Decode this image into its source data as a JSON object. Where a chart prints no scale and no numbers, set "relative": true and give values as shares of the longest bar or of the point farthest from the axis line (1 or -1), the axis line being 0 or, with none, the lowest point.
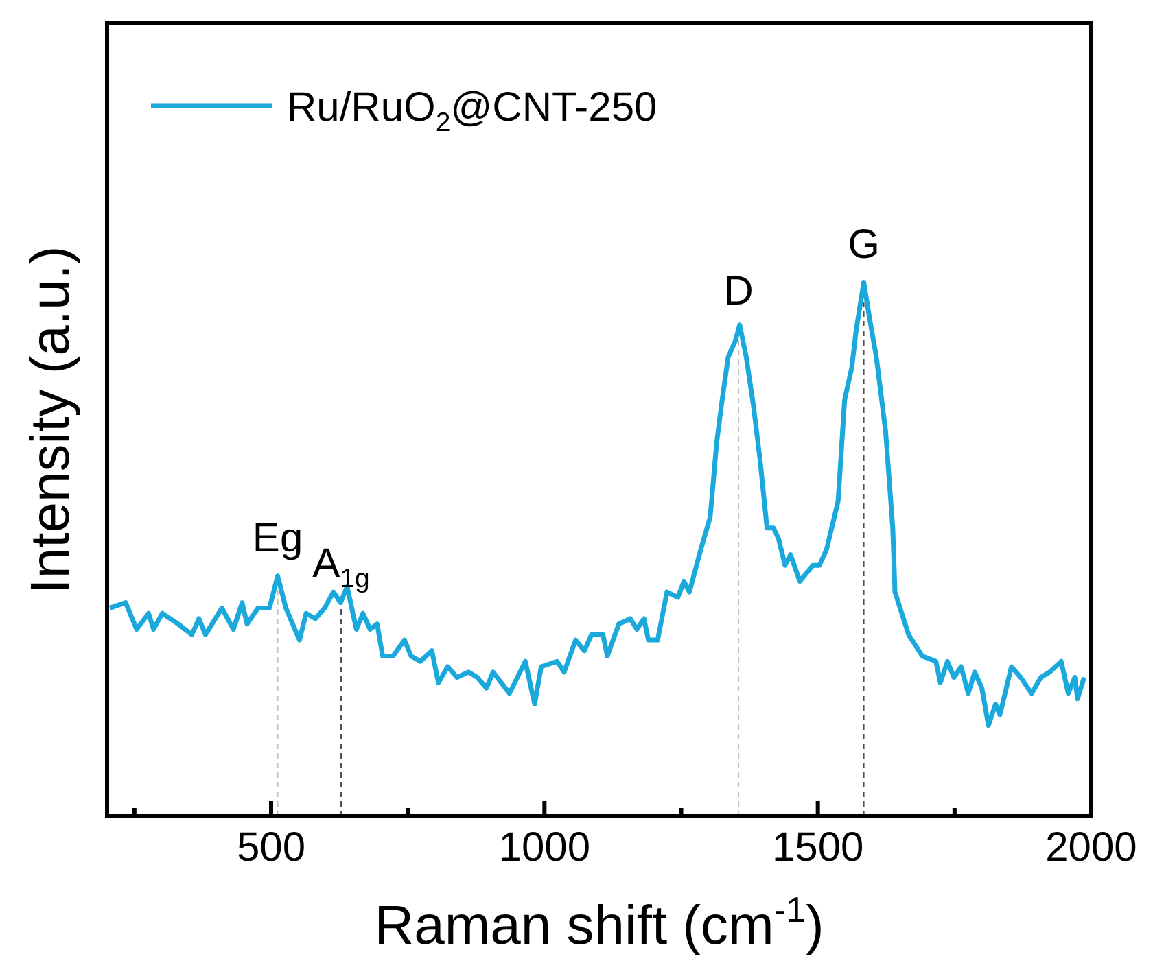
{
  "chart_data": {
    "type": "line",
    "xlabel": "Raman shift (cm$^{-1}$)",
    "ylabel": "Intensity (a.u.)",
    "relative": true,
    "legend": "top left",
    "marker": "none",
    "line_style": "solid",
    "xlim": [
      200,
      2000
    ],
    "xticks": [
      {
        "value": 250,
        "label": null
      },
      500,
      {
        "value": 750,
        "label": null
      },
      1000,
      {
        "value": 1250,
        "label": null
      },
      1500,
      {
        "value": 1750,
        "label": null
      },
      2000
    ],
    "x": [
      205,
      234,
      254,
      276,
      285,
      301,
      330,
      355,
      368,
      380,
      410,
      431,
      447,
      456,
      476,
      497,
      512,
      527,
      552,
      564,
      581,
      598,
      614,
      627,
      639,
      656,
      668,
      681,
      694,
      704,
      723,
      744,
      756,
      773,
      794,
      806,
      823,
      840,
      861,
      877,
      894,
      906,
      936,
      965,
      982,
      994,
      1023,
      1036,
      1057,
      1073,
      1086,
      1107,
      1115,
      1136,
      1157,
      1169,
      1182,
      1190,
      1207,
      1224,
      1244,
      1255,
      1265,
      1286,
      1303,
      1315,
      1325,
      1336,
      1349,
      1357,
      1369,
      1382,
      1394,
      1407,
      1419,
      1428,
      1440,
      1450,
      1467,
      1491,
      1503,
      1516,
      1537,
      1549,
      1562,
      1570,
      1584,
      1595,
      1607,
      1624,
      1637,
      1641,
      1666,
      1691,
      1716,
      1724,
      1737,
      1749,
      1762,
      1775,
      1787,
      1800,
      1812,
      1825,
      1833,
      1854,
      1871,
      1891,
      1908,
      1924,
      1945,
      1958,
      1970,
      1975,
      1987
    ],
    "series": [
      {
        "name": "Ru/RuO$_{2}$@CNT-250",
        "color": "#1ba9dc",
        "values": [
          0.39,
          0.4,
          0.35,
          0.38,
          0.35,
          0.38,
          0.36,
          0.34,
          0.37,
          0.34,
          0.39,
          0.35,
          0.4,
          0.36,
          0.39,
          0.39,
          0.45,
          0.39,
          0.33,
          0.38,
          0.37,
          0.39,
          0.42,
          0.4,
          0.43,
          0.35,
          0.38,
          0.35,
          0.36,
          0.3,
          0.3,
          0.33,
          0.3,
          0.29,
          0.31,
          0.25,
          0.28,
          0.26,
          0.27,
          0.26,
          0.24,
          0.27,
          0.23,
          0.29,
          0.21,
          0.28,
          0.29,
          0.27,
          0.33,
          0.31,
          0.34,
          0.34,
          0.3,
          0.36,
          0.37,
          0.35,
          0.37,
          0.33,
          0.33,
          0.42,
          0.41,
          0.44,
          0.42,
          0.5,
          0.56,
          0.7,
          0.78,
          0.86,
          0.89,
          0.92,
          0.86,
          0.77,
          0.67,
          0.54,
          0.54,
          0.52,
          0.47,
          0.49,
          0.44,
          0.47,
          0.47,
          0.5,
          0.59,
          0.78,
          0.84,
          0.91,
          1,
          0.93,
          0.86,
          0.72,
          0.54,
          0.42,
          0.34,
          0.3,
          0.29,
          0.25,
          0.29,
          0.26,
          0.28,
          0.23,
          0.27,
          0.24,
          0.17,
          0.21,
          0.19,
          0.28,
          0.26,
          0.23,
          0.26,
          0.27,
          0.29,
          0.23,
          0.26,
          0.22,
          0.26
        ]
      }
    ],
    "ref_lines": [
      {
        "axis": "x",
        "value": 512,
        "label": "Eg",
        "color": "#c0c0c0",
        "line_style": "dashed"
      },
      {
        "axis": "x",
        "value": 628,
        "label": "A$_{1g}$",
        "color": "#505050",
        "line_style": "dashed"
      },
      {
        "axis": "x",
        "value": 1355,
        "label": "D",
        "color": "#c0c0c0",
        "line_style": "dashed"
      },
      {
        "axis": "x",
        "value": 1584,
        "label": "G",
        "color": "#505050",
        "line_style": "dashed"
      }
    ]
  }
}
